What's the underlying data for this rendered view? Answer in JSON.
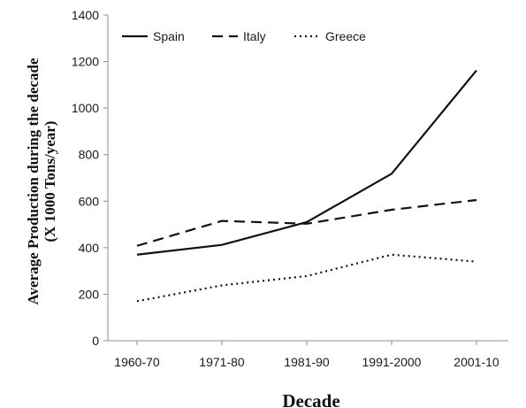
{
  "chart_data": {
    "type": "line",
    "categories": [
      "1960-70",
      "1971-80",
      "1981-90",
      "1991-2000",
      "2001-10"
    ],
    "series": [
      {
        "name": "Spain",
        "values": [
          370,
          412,
          510,
          718,
          1162
        ],
        "dash": "solid"
      },
      {
        "name": "Italy",
        "values": [
          408,
          515,
          503,
          563,
          605
        ],
        "dash": "dashed"
      },
      {
        "name": "Greece",
        "values": [
          170,
          238,
          278,
          370,
          340
        ],
        "dash": "dotted"
      }
    ],
    "xlabel": "Decade",
    "ylabel_line1": "Average Production during the decade",
    "ylabel_line2": "(X 1000 Tons/year)",
    "ylim": [
      0,
      1400
    ],
    "yticks": [
      0,
      200,
      400,
      600,
      800,
      1000,
      1200,
      1400
    ],
    "grid": false,
    "legend_position": "top"
  }
}
